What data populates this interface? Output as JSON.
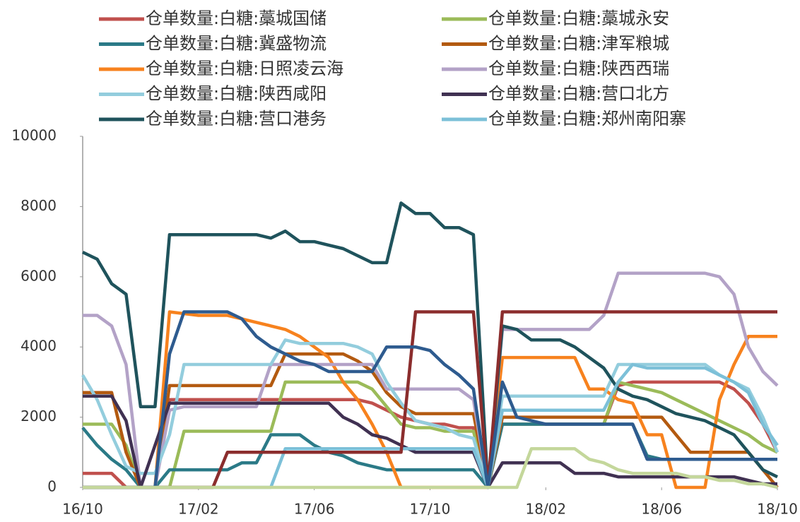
{
  "chart_data": {
    "type": "line",
    "x": [
      0,
      0.5,
      1,
      1.5,
      2,
      2.5,
      3,
      3.5,
      4,
      4.5,
      5,
      5.5,
      6,
      6.5,
      7,
      7.5,
      8,
      8.5,
      9,
      9.5,
      10,
      10.5,
      11,
      11.5,
      12,
      12.5,
      13,
      13.5,
      14,
      14.5,
      15,
      15.5,
      16,
      16.5,
      17,
      17.5,
      18,
      18.5,
      19,
      19.5,
      20,
      20.5,
      21,
      21.5,
      22,
      22.5,
      23,
      23.5,
      24
    ],
    "xlim": [
      0,
      24
    ],
    "xticks": [
      {
        "value": 0,
        "label": "16/10"
      },
      {
        "value": 4,
        "label": "17/02"
      },
      {
        "value": 8,
        "label": "17/06"
      },
      {
        "value": 12,
        "label": "17/10"
      },
      {
        "value": 16,
        "label": "18/02"
      },
      {
        "value": 20,
        "label": "18/06"
      },
      {
        "value": 24,
        "label": "18/10"
      }
    ],
    "ylim": [
      0,
      10000
    ],
    "yticks": [
      0,
      2000,
      4000,
      6000,
      8000,
      10000
    ],
    "series": [
      {
        "name": "仓单数量:白糖:藁城国储",
        "color": "#c0504d",
        "values": [
          400,
          400,
          400,
          0,
          0,
          0,
          2500,
          2500,
          2500,
          2500,
          2500,
          2500,
          2500,
          2500,
          2500,
          2500,
          2500,
          2500,
          2500,
          2500,
          2400,
          2200,
          2000,
          1900,
          1800,
          1800,
          1700,
          1700,
          0,
          1800,
          1800,
          1800,
          1800,
          1800,
          1800,
          1800,
          1800,
          2900,
          3000,
          3000,
          3000,
          3000,
          3000,
          3000,
          3000,
          2800,
          2400,
          1800,
          1000
        ]
      },
      {
        "name": "仓单数量:白糖:藁城永安",
        "color": "#9bbb59",
        "values": [
          1800,
          1800,
          1800,
          1200,
          0,
          0,
          0,
          1600,
          1600,
          1600,
          1600,
          1600,
          1600,
          1600,
          3000,
          3000,
          3000,
          3000,
          3000,
          3000,
          2800,
          2300,
          1800,
          1700,
          1700,
          1600,
          1600,
          1600,
          0,
          1800,
          1800,
          1800,
          1800,
          1800,
          1800,
          1800,
          1800,
          3000,
          2900,
          2800,
          2700,
          2500,
          2300,
          2100,
          1900,
          1700,
          1500,
          1200,
          1000
        ]
      },
      {
        "name": "仓单数量:白糖:冀盛物流",
        "color": "#2b7a87",
        "values": [
          1700,
          1200,
          800,
          500,
          0,
          0,
          500,
          500,
          500,
          500,
          500,
          700,
          700,
          1500,
          1500,
          1500,
          1200,
          1000,
          900,
          700,
          600,
          500,
          500,
          500,
          500,
          500,
          500,
          500,
          0,
          1800,
          1800,
          1800,
          1800,
          1800,
          1800,
          1800,
          1800,
          1800,
          1800,
          900,
          800,
          800,
          800,
          800,
          800,
          800,
          800,
          800,
          800
        ]
      },
      {
        "name": "仓单数量:白糖:津军粮城",
        "color": "#b35a10",
        "values": [
          2700,
          2700,
          2700,
          1000,
          0,
          0,
          2900,
          2900,
          2900,
          2900,
          2900,
          2900,
          2900,
          2900,
          3800,
          3800,
          3800,
          3800,
          3800,
          3600,
          3300,
          2700,
          2300,
          2100,
          2100,
          2100,
          2100,
          2100,
          0,
          2000,
          2000,
          2000,
          2000,
          2000,
          2000,
          2000,
          2000,
          2000,
          2000,
          2000,
          2000,
          1500,
          1000,
          1000,
          1000,
          1000,
          1000,
          500,
          0
        ]
      },
      {
        "name": "仓单数量:白糖:日照凌云海",
        "color": "#f7821e",
        "values": [
          0,
          0,
          0,
          0,
          0,
          0,
          5000,
          4950,
          4900,
          4900,
          4900,
          4800,
          4700,
          4600,
          4500,
          4300,
          4000,
          3700,
          3000,
          2500,
          1800,
          1000,
          0,
          0,
          0,
          0,
          0,
          0,
          0,
          3700,
          3700,
          3700,
          3700,
          3700,
          3700,
          2800,
          2800,
          2500,
          2400,
          1500,
          1500,
          0,
          0,
          0,
          2500,
          3500,
          4300,
          4300,
          4300
        ]
      },
      {
        "name": "仓单数量:白糖:陕西西瑞",
        "color": "#b3a2c7",
        "values": [
          4900,
          4900,
          4600,
          3500,
          0,
          0,
          2200,
          2300,
          2300,
          2300,
          2300,
          2300,
          2300,
          3500,
          3500,
          3500,
          3500,
          3500,
          3500,
          3500,
          3500,
          2800,
          2800,
          2800,
          2800,
          2800,
          2800,
          2500,
          0,
          4500,
          4500,
          4500,
          4500,
          4500,
          4500,
          4500,
          4900,
          6100,
          6100,
          6100,
          6100,
          6100,
          6100,
          6100,
          6000,
          5500,
          4000,
          3300,
          2900
        ]
      },
      {
        "name": "仓单数量:白糖:陕西咸阳",
        "color": "#93cddd",
        "values": [
          3200,
          2500,
          1500,
          600,
          400,
          400,
          1500,
          3500,
          3500,
          3500,
          3500,
          3500,
          3500,
          3500,
          4200,
          4100,
          4100,
          4100,
          4100,
          4000,
          3800,
          3000,
          2400,
          1900,
          1800,
          1700,
          1500,
          1400,
          0,
          2600,
          2600,
          2600,
          2600,
          2600,
          2600,
          2600,
          2600,
          3500,
          3500,
          3500,
          3500,
          3500,
          3500,
          3500,
          3200,
          3000,
          2800,
          2000,
          1000
        ]
      },
      {
        "name": "仓单数量:白糖:营口北方",
        "color": "#403152",
        "values": [
          2600,
          2600,
          2600,
          1900,
          0,
          1200,
          2400,
          2400,
          2400,
          2400,
          2400,
          2400,
          2400,
          2400,
          2400,
          2400,
          2400,
          2400,
          2000,
          1800,
          1500,
          1400,
          1200,
          1000,
          1000,
          1000,
          1000,
          1000,
          0,
          700,
          700,
          700,
          700,
          700,
          400,
          400,
          400,
          300,
          300,
          300,
          300,
          300,
          300,
          300,
          300,
          300,
          200,
          100,
          100
        ]
      },
      {
        "name": "仓单数量:白糖:营口港务",
        "color": "#1f535c",
        "values": [
          6700,
          6500,
          5800,
          5500,
          2300,
          2300,
          7200,
          7200,
          7200,
          7200,
          7200,
          7200,
          7200,
          7100,
          7300,
          7000,
          7000,
          6900,
          6800,
          6600,
          6400,
          6400,
          8100,
          7800,
          7800,
          7400,
          7400,
          7200,
          0,
          4600,
          4500,
          4200,
          4200,
          4200,
          4000,
          3700,
          3400,
          2800,
          2600,
          2500,
          2300,
          2100,
          2000,
          1900,
          1700,
          1500,
          1000,
          500,
          300
        ]
      },
      {
        "name": "仓单数量:白糖:郑州南阳寨",
        "color": "#7cc0d8",
        "values": [
          0,
          0,
          0,
          0,
          0,
          0,
          0,
          0,
          0,
          0,
          0,
          0,
          0,
          0,
          1100,
          1100,
          1100,
          1100,
          1100,
          1100,
          1100,
          1100,
          1100,
          1100,
          1100,
          1100,
          1100,
          1100,
          0,
          2200,
          2200,
          2200,
          2200,
          2200,
          2200,
          2200,
          2200,
          3000,
          3500,
          3400,
          3400,
          3400,
          3400,
          3400,
          3200,
          3000,
          2700,
          1800,
          1200
        ]
      },
      {
        "color": "#8b2d2d",
        "values": [
          0,
          0,
          0,
          0,
          0,
          0,
          0,
          0,
          0,
          0,
          1000,
          1000,
          1000,
          1000,
          1000,
          1000,
          1000,
          1000,
          1000,
          1000,
          1000,
          1000,
          1000,
          5000,
          5000,
          5000,
          5000,
          5000,
          0,
          5000,
          5000,
          5000,
          5000,
          5000,
          5000,
          5000,
          5000,
          5000,
          5000,
          5000,
          5000,
          5000,
          5000,
          5000,
          5000,
          5000,
          5000,
          5000,
          5000
        ]
      },
      {
        "color": "#2e5b8f",
        "values": [
          0,
          0,
          0,
          0,
          0,
          0,
          3800,
          5000,
          5000,
          5000,
          5000,
          4800,
          4300,
          4000,
          3800,
          3600,
          3500,
          3300,
          3300,
          3300,
          3300,
          4000,
          4000,
          4000,
          3900,
          3500,
          3200,
          2800,
          0,
          3000,
          2000,
          1900,
          1800,
          1800,
          1800,
          1800,
          1800,
          1800,
          1800,
          800,
          800,
          800,
          800,
          800,
          800,
          800,
          800,
          800,
          800
        ]
      },
      {
        "color": "#c4d79b",
        "values": [
          0,
          0,
          0,
          0,
          0,
          0,
          0,
          0,
          0,
          0,
          0,
          0,
          0,
          0,
          0,
          0,
          0,
          0,
          0,
          0,
          0,
          0,
          0,
          0,
          0,
          0,
          0,
          0,
          0,
          0,
          0,
          1100,
          1100,
          1100,
          1100,
          800,
          700,
          500,
          400,
          400,
          400,
          400,
          300,
          300,
          200,
          200,
          100,
          100,
          0
        ]
      }
    ]
  }
}
